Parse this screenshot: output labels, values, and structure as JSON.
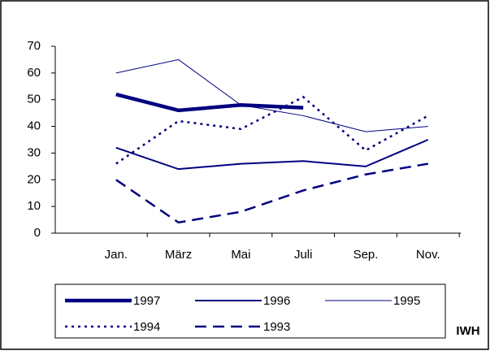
{
  "chart_data": {
    "type": "line",
    "categories": [
      "Jan.",
      "März",
      "Mai",
      "Juli",
      "Sep.",
      "Nov."
    ],
    "series": [
      {
        "name": "1997",
        "color": "#000080",
        "values": [
          52,
          46,
          48,
          47,
          null,
          null
        ]
      },
      {
        "name": "1996",
        "color": "#000080",
        "values": [
          32,
          24,
          26,
          27,
          25,
          35
        ]
      },
      {
        "name": "1995",
        "color": "#000080",
        "values": [
          60,
          65,
          48,
          44,
          38,
          40
        ]
      },
      {
        "name": "1994",
        "color": "#000080",
        "values": [
          26,
          42,
          39,
          51,
          31,
          44
        ]
      },
      {
        "name": "1993",
        "color": "#000080",
        "values": [
          20,
          4,
          8,
          16,
          22,
          26
        ]
      }
    ],
    "ylim": [
      0,
      70
    ],
    "yticks": [
      0,
      10,
      20,
      30,
      40,
      50,
      60,
      70
    ],
    "source": "IWH"
  }
}
